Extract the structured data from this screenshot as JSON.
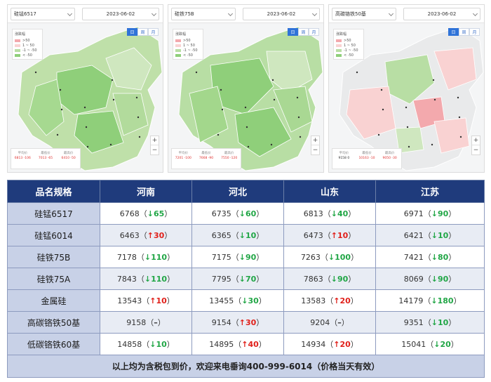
{
  "maps": [
    {
      "product": "硅锰6517",
      "date": "2023-06-02",
      "legend_title": "涨跌幅",
      "legend": [
        ">50",
        "1 ~ 50",
        "-1 ~ -50",
        "< -50"
      ],
      "tabs": [
        "日",
        "周",
        "月"
      ],
      "stats": [
        [
          "平均价",
          "6813 -106"
        ],
        [
          "最低价",
          "7013 -65"
        ],
        [
          "最高价",
          "6410 -50"
        ]
      ]
    },
    {
      "product": "硅铁75B",
      "date": "2023-06-02",
      "legend_title": "涨跌幅",
      "legend": [
        ">50",
        "1 ~ 50",
        "-1 ~ -50",
        "< -50"
      ],
      "tabs": [
        "日",
        "周",
        "月"
      ],
      "stats": [
        [
          "平均价",
          "7201 -100"
        ],
        [
          "最低价",
          "7668 -90"
        ],
        [
          "最高价",
          "7550 -120"
        ]
      ]
    },
    {
      "product": "高碳铬铁50基",
      "date": "2023-06-02",
      "legend_title": "涨跌幅",
      "legend": [
        ">50",
        "1 ~ 50",
        "-1 ~ -50",
        "< -50"
      ],
      "tabs": [
        "日",
        "周",
        "月"
      ],
      "stats": [
        [
          "平均价",
          "9158 0"
        ],
        [
          "最低价",
          "10163 -10"
        ],
        [
          "最高价",
          "9050 -30"
        ]
      ]
    }
  ],
  "colors": {
    "up_strong": "#f3a9ad",
    "up": "#f9d2d2",
    "down": "#b8dea4",
    "down_strong": "#8fcf7a",
    "header": "#1f3b7c",
    "row_label": "#c8d1e7"
  },
  "table": {
    "headers": [
      "品名规格",
      "河南",
      "河北",
      "山东",
      "江苏"
    ],
    "rows": [
      {
        "name": "硅锰6517",
        "cells": [
          {
            "price": "6768",
            "dir": "down",
            "chg": "65"
          },
          {
            "price": "6735",
            "dir": "down",
            "chg": "60"
          },
          {
            "price": "6813",
            "dir": "down",
            "chg": "40"
          },
          {
            "price": "6971",
            "dir": "down",
            "chg": "90"
          }
        ]
      },
      {
        "name": "硅锰6014",
        "cells": [
          {
            "price": "6463",
            "dir": "up",
            "chg": "30"
          },
          {
            "price": "6365",
            "dir": "down",
            "chg": "10"
          },
          {
            "price": "6473",
            "dir": "up",
            "chg": "10"
          },
          {
            "price": "6421",
            "dir": "down",
            "chg": "10"
          }
        ]
      },
      {
        "name": "硅铁75B",
        "cells": [
          {
            "price": "7178",
            "dir": "down",
            "chg": "110"
          },
          {
            "price": "7175",
            "dir": "down",
            "chg": "90"
          },
          {
            "price": "7263",
            "dir": "down",
            "chg": "100"
          },
          {
            "price": "7421",
            "dir": "down",
            "chg": "80"
          }
        ]
      },
      {
        "name": "硅铁75A",
        "cells": [
          {
            "price": "7843",
            "dir": "down",
            "chg": "110"
          },
          {
            "price": "7795",
            "dir": "down",
            "chg": "70"
          },
          {
            "price": "7863",
            "dir": "down",
            "chg": "90"
          },
          {
            "price": "8069",
            "dir": "down",
            "chg": "90"
          }
        ]
      },
      {
        "name": "金属硅",
        "cells": [
          {
            "price": "13543",
            "dir": "up",
            "chg": "10"
          },
          {
            "price": "13455",
            "dir": "down",
            "chg": "30"
          },
          {
            "price": "13583",
            "dir": "up",
            "chg": "20"
          },
          {
            "price": "14179",
            "dir": "down",
            "chg": "180"
          }
        ]
      },
      {
        "name": "高碳铬铁50基",
        "cells": [
          {
            "price": "9158",
            "dir": "flat",
            "chg": "–"
          },
          {
            "price": "9154",
            "dir": "up",
            "chg": "30"
          },
          {
            "price": "9204",
            "dir": "flat",
            "chg": "–"
          },
          {
            "price": "9351",
            "dir": "down",
            "chg": "10"
          }
        ]
      },
      {
        "name": "低碳铬铁60基",
        "cells": [
          {
            "price": "14858",
            "dir": "down",
            "chg": "10"
          },
          {
            "price": "14895",
            "dir": "up",
            "chg": "40"
          },
          {
            "price": "14934",
            "dir": "up",
            "chg": "20"
          },
          {
            "price": "15041",
            "dir": "down",
            "chg": "20"
          }
        ]
      }
    ],
    "footer": "以上均为含税包到价，欢迎来电垂询400-999-6014（价格当天有效）"
  }
}
